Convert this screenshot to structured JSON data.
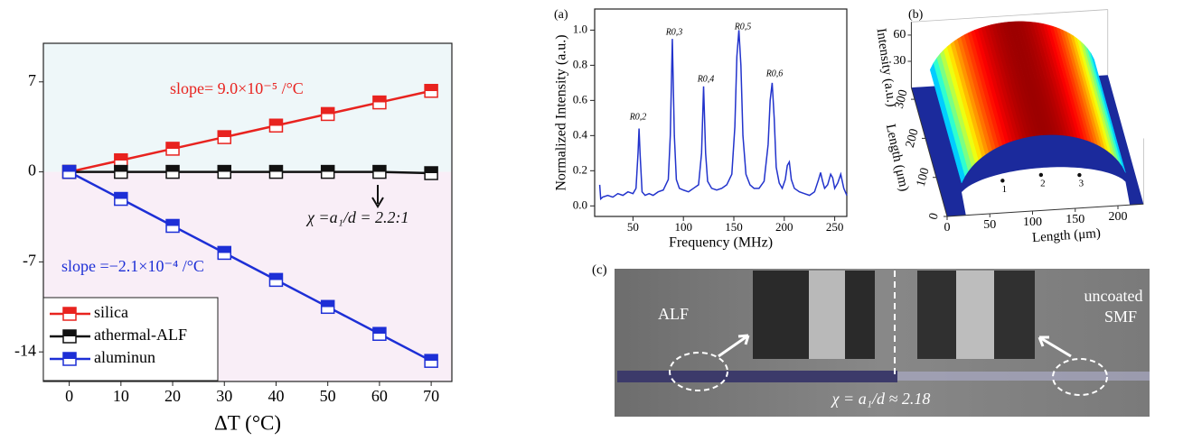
{
  "chart_data": [
    {
      "type": "line",
      "xlabel": "ΔT (°C)",
      "x": [
        0,
        10,
        20,
        30,
        40,
        50,
        60,
        70
      ],
      "series": [
        {
          "name": "silica",
          "color": "#e8231f",
          "values": [
            0,
            0.9,
            1.8,
            2.7,
            3.6,
            4.5,
            5.4,
            6.3
          ]
        },
        {
          "name": "athermal-ALF",
          "color": "#111111",
          "values": [
            0,
            0,
            0,
            0,
            0,
            0,
            0,
            -0.1
          ]
        },
        {
          "name": "aluminun",
          "color": "#1d2fd6",
          "values": [
            0,
            -2.1,
            -4.2,
            -6.3,
            -8.4,
            -10.5,
            -12.6,
            -14.7
          ]
        }
      ],
      "xlim": [
        -5,
        74
      ],
      "ylim": [
        -16.3,
        10
      ],
      "xticks": [
        0,
        10,
        20,
        30,
        40,
        50,
        60,
        70
      ],
      "yticks": [
        -14,
        -7,
        0,
        7
      ],
      "annotations": [
        {
          "text": "slope= 9.0×10⁻⁵ /°C",
          "color": "#e8231f"
        },
        {
          "text": "χ =a₁/d = 2.2:1",
          "color": "#111111"
        },
        {
          "text": "slope =−2.1×10⁻⁴ /°C",
          "color": "#1d2fd6"
        }
      ],
      "legend": "lower left"
    },
    {
      "type": "line",
      "panel_label": "(a)",
      "xlabel": "Frequency (MHz)",
      "ylabel": "Normalized Intensity (a.u.)",
      "x": [
        17,
        18,
        20,
        25,
        30,
        35,
        40,
        45,
        50,
        53,
        55,
        56,
        57,
        59,
        62,
        66,
        70,
        75,
        80,
        85,
        87,
        89,
        91,
        93,
        96,
        100,
        105,
        110,
        115,
        118,
        120,
        122,
        124,
        128,
        133,
        138,
        143,
        148,
        151,
        153,
        155,
        157,
        159,
        162,
        166,
        170,
        175,
        180,
        184,
        186,
        188,
        190,
        192,
        195,
        198,
        201,
        203,
        205,
        207,
        210,
        215,
        220,
        225,
        230,
        234,
        236,
        238,
        240,
        243,
        246,
        248,
        250,
        253,
        256,
        259,
        262
      ],
      "series": [
        {
          "name": "spectrum",
          "color": "#2233cc",
          "values": [
            0.12,
            0.04,
            0.05,
            0.06,
            0.05,
            0.07,
            0.06,
            0.08,
            0.07,
            0.1,
            0.3,
            0.44,
            0.3,
            0.08,
            0.06,
            0.07,
            0.06,
            0.08,
            0.09,
            0.15,
            0.4,
            0.95,
            0.4,
            0.15,
            0.1,
            0.09,
            0.08,
            0.1,
            0.12,
            0.3,
            0.68,
            0.3,
            0.14,
            0.1,
            0.09,
            0.1,
            0.12,
            0.18,
            0.45,
            0.85,
            1.0,
            0.8,
            0.4,
            0.18,
            0.12,
            0.1,
            0.1,
            0.14,
            0.35,
            0.6,
            0.7,
            0.5,
            0.22,
            0.13,
            0.1,
            0.15,
            0.23,
            0.25,
            0.15,
            0.1,
            0.08,
            0.07,
            0.06,
            0.08,
            0.15,
            0.19,
            0.14,
            0.1,
            0.12,
            0.18,
            0.16,
            0.1,
            0.13,
            0.18,
            0.1,
            0.06
          ]
        }
      ],
      "xlim": [
        12,
        262
      ],
      "ylim": [
        -0.06,
        1.12
      ],
      "xticks": [
        50,
        100,
        150,
        200,
        250
      ],
      "yticks": [
        {
          "value": 0,
          "label": "0.0"
        },
        0.2,
        0.4,
        0.6,
        0.8,
        {
          "value": 1,
          "label": "1.0"
        }
      ],
      "peak_labels": [
        "R0,2",
        "R0,3",
        "R0,4",
        "R0,5",
        "R0,6"
      ]
    },
    {
      "type": "surface",
      "panel_label": "(b)",
      "xlabel": "Length (μm)",
      "ylabel": "Length (μm)",
      "zlabel": "Intensity (a.u.)",
      "xlim": [
        0,
        230
      ],
      "ylim": [
        0,
        330
      ],
      "zlim": [
        0,
        75
      ],
      "xticks": [
        0,
        50,
        100,
        150,
        200
      ],
      "yticks": [
        0,
        100,
        200,
        300
      ],
      "zticks": [
        30,
        60
      ],
      "markers": [
        "1",
        "2",
        "3"
      ]
    }
  ],
  "photo": {
    "label": "(c)",
    "texts": [
      "ALF",
      "uncoated",
      "SMF",
      "χ = a₁/d ≈ 2.18"
    ]
  }
}
